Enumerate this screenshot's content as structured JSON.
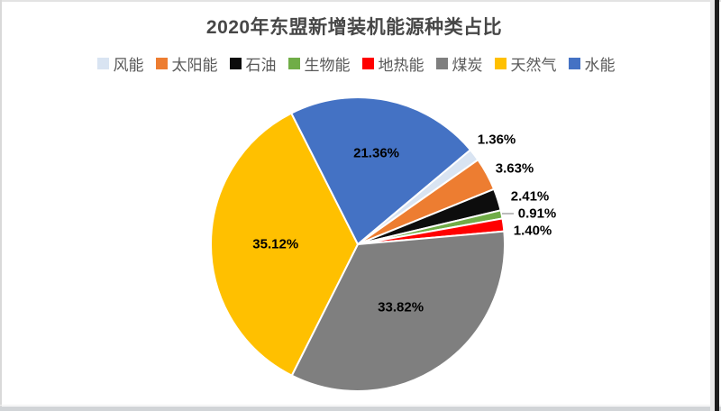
{
  "chart_data": {
    "type": "pie",
    "title": "2020年东盟新增装机能源种类占比",
    "legend_position": "top",
    "unit": "%",
    "start_angle_deg": 50,
    "slices": [
      {
        "id": "wind",
        "name": "风能",
        "value": 1.36,
        "label": "1.36%",
        "color": "#D9E4F2",
        "label_placement": "outside"
      },
      {
        "id": "solar",
        "name": "太阳能",
        "value": 3.63,
        "label": "3.63%",
        "color": "#ED7D31",
        "label_placement": "outside"
      },
      {
        "id": "oil",
        "name": "石油",
        "value": 2.41,
        "label": "2.41%",
        "color": "#0D0D0D",
        "label_placement": "outside"
      },
      {
        "id": "bio",
        "name": "生物能",
        "value": 0.91,
        "label": "0.91%",
        "color": "#70AD47",
        "label_placement": "outside-leader"
      },
      {
        "id": "geothermal",
        "name": "地热能",
        "value": 1.4,
        "label": "1.40%",
        "color": "#FF0000",
        "label_placement": "outside"
      },
      {
        "id": "coal",
        "name": "煤炭",
        "value": 33.82,
        "label": "33.82%",
        "color": "#7F7F7F",
        "label_placement": "inside"
      },
      {
        "id": "gas",
        "name": "天然气",
        "value": 35.12,
        "label": "35.12%",
        "color": "#FFC000",
        "label_placement": "inside"
      },
      {
        "id": "hydro",
        "name": "水能",
        "value": 21.36,
        "label": "21.36%",
        "color": "#4472C4",
        "label_placement": "inside"
      }
    ]
  }
}
